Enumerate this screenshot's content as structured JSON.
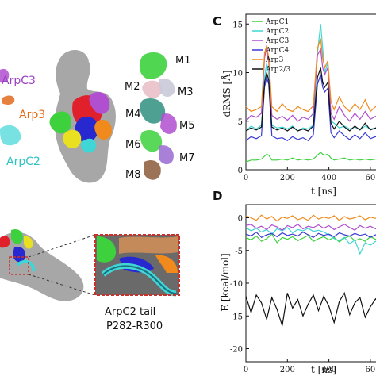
{
  "panels": {
    "left": {
      "labels": {
        "arpc3": "ArpC3",
        "arp3": "Arp3",
        "arpc2": "ArpC2",
        "m1": "M1",
        "m2": "M2",
        "m3": "M3",
        "m4": "M4",
        "m5": "M5",
        "m6": "M6",
        "m7": "M7",
        "m8": "M8",
        "tail_line1": "ArpC2 tail",
        "tail_line2": "P282-R300"
      }
    },
    "c": {
      "panel_letter": "C",
      "legend": [
        "ArpC1",
        "ArpC2",
        "ArpC3",
        "ArpC4",
        "Arp3",
        "Arp2/3"
      ],
      "ylabel": "dRMS [Å]",
      "xlabel": "t [ns]",
      "xticks": [
        "0",
        "200",
        "400",
        "60"
      ],
      "yticks": [
        "0",
        "5",
        "10",
        "15"
      ]
    },
    "d": {
      "panel_letter": "D",
      "ylabel": "E [kcal/mol]",
      "xlabel": "t [ns]",
      "xticks": [
        "0",
        "200",
        "400",
        "60"
      ],
      "yticks": [
        "0",
        "-5",
        "-10",
        "-15",
        "-20"
      ]
    }
  },
  "colors": {
    "ArpC1": "#3dd13d",
    "ArpC2": "#3fd6d6",
    "ArpC3": "#b04fd0",
    "ArpC4": "#3a3ad6",
    "Arp3": "#f08a1c",
    "Arp2/3": "#111111"
  },
  "chart_data": [
    {
      "type": "line",
      "panel": "C",
      "xlabel": "t [ns]",
      "ylabel": "dRMS [Å]",
      "xlim": [
        0,
        650
      ],
      "ylim": [
        0,
        16
      ],
      "x": [
        0,
        25,
        50,
        75,
        90,
        100,
        110,
        125,
        150,
        175,
        200,
        225,
        250,
        275,
        300,
        325,
        345,
        360,
        370,
        380,
        395,
        410,
        425,
        450,
        475,
        500,
        525,
        550,
        575,
        600,
        625,
        650
      ],
      "series": [
        {
          "name": "ArpC1",
          "values": [
            0.8,
            1.0,
            1.0,
            1.1,
            1.4,
            1.6,
            1.5,
            1.0,
            1.0,
            1.1,
            1.0,
            1.2,
            1.0,
            1.1,
            1.0,
            1.1,
            1.5,
            1.8,
            1.6,
            1.5,
            1.6,
            1.2,
            1.0,
            1.1,
            1.2,
            1.0,
            1.1,
            1.0,
            1.1,
            1.0,
            1.1,
            1.0
          ]
        },
        {
          "name": "ArpC2",
          "values": [
            4.0,
            4.5,
            4.2,
            4.6,
            9.5,
            11.0,
            9.8,
            4.6,
            4.3,
            4.4,
            4.2,
            4.5,
            4.0,
            4.3,
            4.2,
            4.6,
            12.0,
            15.0,
            12.5,
            10.0,
            11.0,
            5.0,
            4.8,
            4.3,
            4.5,
            4.2,
            4.4,
            4.1,
            4.5,
            4.2,
            4.3,
            4.2
          ]
        },
        {
          "name": "ArpC3",
          "values": [
            5.0,
            5.6,
            5.4,
            5.8,
            11.5,
            12.6,
            11.0,
            5.6,
            5.2,
            5.5,
            5.1,
            5.6,
            5.0,
            5.4,
            5.2,
            5.8,
            11.8,
            12.4,
            10.5,
            9.8,
            10.5,
            5.8,
            5.2,
            6.5,
            5.6,
            5.0,
            5.8,
            5.2,
            6.0,
            5.2,
            5.5,
            5.3
          ]
        },
        {
          "name": "ArpC4",
          "values": [
            3.0,
            3.4,
            3.2,
            3.5,
            8.5,
            9.5,
            8.8,
            3.5,
            3.2,
            3.3,
            3.0,
            3.4,
            3.1,
            3.3,
            3.0,
            3.6,
            8.8,
            9.8,
            8.5,
            8.0,
            8.4,
            3.8,
            3.3,
            4.0,
            3.5,
            3.1,
            3.6,
            3.2,
            3.8,
            3.2,
            3.4,
            3.3
          ]
        },
        {
          "name": "Arp3",
          "values": [
            6.5,
            6.0,
            6.2,
            6.5,
            12.0,
            12.8,
            11.5,
            6.5,
            6.0,
            6.8,
            6.2,
            6.0,
            6.5,
            6.2,
            6.0,
            6.6,
            12.5,
            13.5,
            11.5,
            10.5,
            11.2,
            7.0,
            6.2,
            7.5,
            6.5,
            6.0,
            6.8,
            6.2,
            7.2,
            6.0,
            6.5,
            6.3
          ]
        },
        {
          "name": "Arp2/3",
          "values": [
            4.0,
            4.3,
            4.1,
            4.4,
            9.0,
            10.0,
            9.2,
            4.4,
            4.1,
            4.3,
            4.0,
            4.4,
            4.0,
            4.2,
            4.0,
            4.5,
            9.5,
            10.5,
            9.0,
            8.5,
            9.0,
            4.8,
            4.2,
            5.0,
            4.4,
            4.0,
            4.5,
            4.1,
            4.8,
            4.1,
            4.3,
            4.2
          ]
        }
      ]
    },
    {
      "type": "line",
      "panel": "D",
      "xlabel": "t [ns]",
      "ylabel": "E [kcal/mol]",
      "xlim": [
        0,
        650
      ],
      "ylim": [
        -22,
        2
      ],
      "x": [
        0,
        25,
        50,
        75,
        100,
        125,
        150,
        175,
        200,
        225,
        250,
        275,
        300,
        325,
        350,
        375,
        400,
        425,
        450,
        475,
        500,
        525,
        550,
        575,
        600,
        625,
        650
      ],
      "series": [
        {
          "name": "ArpC1",
          "values": [
            -3.0,
            -3.4,
            -2.8,
            -3.6,
            -3.2,
            -2.5,
            -3.8,
            -3.0,
            -3.3,
            -2.9,
            -3.5,
            -3.1,
            -2.7,
            -3.6,
            -3.2,
            -2.9,
            -3.4,
            -3.0,
            -3.7,
            -3.1,
            -2.8,
            -3.5,
            -3.2,
            -3.6,
            -2.9,
            -3.3,
            -3.0
          ]
        },
        {
          "name": "ArpC2",
          "values": [
            -1.5,
            -2.0,
            -1.6,
            -2.2,
            -1.8,
            -2.5,
            -1.7,
            -2.0,
            -1.5,
            -2.3,
            -1.8,
            -2.0,
            -1.6,
            -2.1,
            -1.9,
            -2.2,
            -2.6,
            -3.2,
            -3.5,
            -3.0,
            -4.0,
            -3.4,
            -5.5,
            -3.8,
            -4.2,
            -3.6,
            -4.0
          ]
        },
        {
          "name": "ArpC3",
          "values": [
            -1.2,
            -1.0,
            -1.6,
            -1.3,
            -1.8,
            -1.1,
            -1.4,
            -1.9,
            -1.2,
            -1.5,
            -1.0,
            -1.7,
            -1.3,
            -1.5,
            -1.1,
            -1.6,
            -1.2,
            -1.8,
            -1.4,
            -1.0,
            -1.5,
            -1.9,
            -1.2,
            -1.6,
            -1.3,
            -1.7,
            -1.4
          ]
        },
        {
          "name": "ArpC4",
          "values": [
            -2.5,
            -2.8,
            -2.2,
            -3.0,
            -2.6,
            -2.4,
            -2.9,
            -2.3,
            -2.7,
            -2.5,
            -2.8,
            -2.2,
            -2.6,
            -3.0,
            -2.4,
            -2.7,
            -2.5,
            -2.9,
            -2.3,
            -2.6,
            -2.8,
            -2.4,
            -2.7,
            -2.5,
            -3.0,
            -2.6,
            -2.8
          ]
        },
        {
          "name": "Arp3",
          "values": [
            0.3,
            0.0,
            -0.4,
            0.4,
            -0.2,
            0.2,
            -0.5,
            0.1,
            -0.1,
            0.3,
            -0.3,
            0.0,
            -0.4,
            0.4,
            -0.2,
            0.1,
            -0.1,
            0.3,
            -0.4,
            0.2,
            -0.2,
            0.0,
            0.3,
            -0.3,
            0.1,
            -0.1,
            0.2
          ]
        },
        {
          "name": "Arp2/3",
          "values": [
            -12.0,
            -14.5,
            -11.8,
            -13.0,
            -15.5,
            -12.2,
            -14.0,
            -16.5,
            -11.5,
            -13.8,
            -12.5,
            -15.0,
            -13.2,
            -11.8,
            -14.2,
            -12.0,
            -13.5,
            -16.0,
            -12.8,
            -11.5,
            -14.8,
            -13.0,
            -12.2,
            -15.2,
            -13.6,
            -12.4,
            -13.0
          ]
        }
      ]
    }
  ]
}
